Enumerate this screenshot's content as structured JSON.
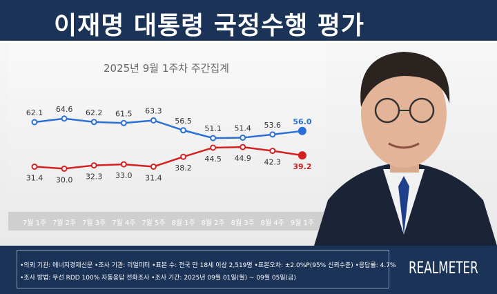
{
  "header": {
    "title": "이재명 대통령 국정수행 평가"
  },
  "chart_data": {
    "type": "line",
    "title": "2025년 9월 1주차 주간집계",
    "categories": [
      "7월 1주",
      "7월 2주",
      "7월 3주",
      "7월 4주",
      "7월 5주",
      "8월 1주",
      "8월 2주",
      "8월 3주",
      "8월 4주",
      "9월 1주"
    ],
    "series": [
      {
        "values": [
          62.1,
          64.6,
          62.2,
          61.5,
          63.3,
          56.5,
          51.1,
          51.4,
          53.6,
          56.0
        ],
        "color": "#2a6fd6"
      },
      {
        "values": [
          31.4,
          30.0,
          32.3,
          33.0,
          31.4,
          38.2,
          44.5,
          44.9,
          42.3,
          39.2
        ],
        "color": "#d42020"
      }
    ]
  },
  "footer": {
    "line1": "•의뢰 기관: 에너지경제신문 •조사 기관: 리얼미터 •표본 수: 전국 만 18세 이상 2,519명 •표본오차: ±2.0%P(95% 신뢰수준) •응답률: 4.7%",
    "line2": "•조사 방법: 무선 RDD 100% 자동응답 전화조사 •조사 기간: 2025년 09월 01일(월) ~ 09월 05일(금)",
    "logo": "REALMETER"
  }
}
